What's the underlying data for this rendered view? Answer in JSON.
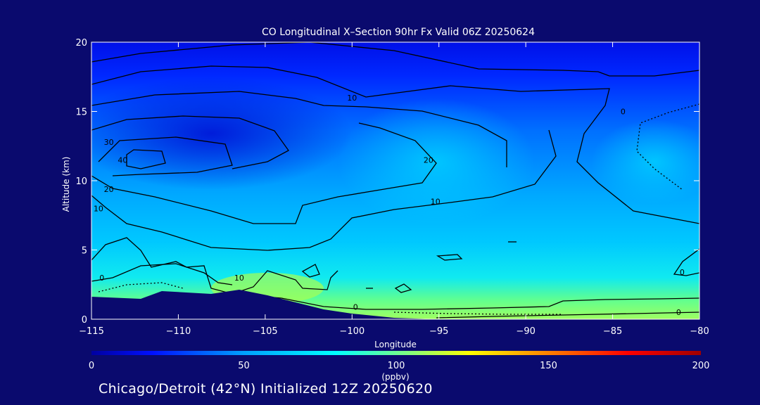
{
  "chart_data": {
    "type": "heatmap",
    "title": "CO Longitudinal X–Section 90hr  Fx Valid 06Z 20250624",
    "xlabel": "Longitude",
    "ylabel": "Altitude (km)",
    "xlim": [
      -115,
      -80
    ],
    "ylim": [
      0,
      20
    ],
    "x_ticks": [
      "−115",
      "−110",
      "−105",
      "−100",
      "−95",
      "−90",
      "−85",
      "−80"
    ],
    "y_ticks": [
      "0",
      "5",
      "10",
      "15",
      "20"
    ],
    "colorbar": {
      "ticks": [
        "0",
        "50",
        "100",
        "150",
        "200"
      ],
      "unit": "(ppbv)",
      "range": [
        0,
        200
      ],
      "colors": [
        "#0000a0",
        "#0010ff",
        "#00a0ff",
        "#00ffff",
        "#80ff80",
        "#ffff00",
        "#ff8000",
        "#ff0000",
        "#a00000"
      ]
    },
    "contour_labels": [
      {
        "text": "10",
        "lon": -100,
        "alt": 16.0
      },
      {
        "text": "30",
        "lon": -114,
        "alt": 12.8
      },
      {
        "text": "40",
        "lon": -113.2,
        "alt": 11.5
      },
      {
        "text": "20",
        "lon": -114,
        "alt": 9.4
      },
      {
        "text": "10",
        "lon": -114.6,
        "alt": 8.0
      },
      {
        "text": "20",
        "lon": -95.6,
        "alt": 11.5
      },
      {
        "text": "10",
        "lon": -95.2,
        "alt": 8.5
      },
      {
        "text": "0",
        "lon": -84.4,
        "alt": 15.0
      },
      {
        "text": "0",
        "lon": -114.4,
        "alt": 3.0
      },
      {
        "text": "10",
        "lon": -106.5,
        "alt": 3.0
      },
      {
        "text": "0",
        "lon": -99.8,
        "alt": 0.9
      },
      {
        "text": "0",
        "lon": -81,
        "alt": 3.4
      },
      {
        "text": "0",
        "lon": -81.2,
        "alt": 0.5
      }
    ]
  },
  "footer": "Chicago/Detroit (42°N) Initialized 12Z 20250620"
}
